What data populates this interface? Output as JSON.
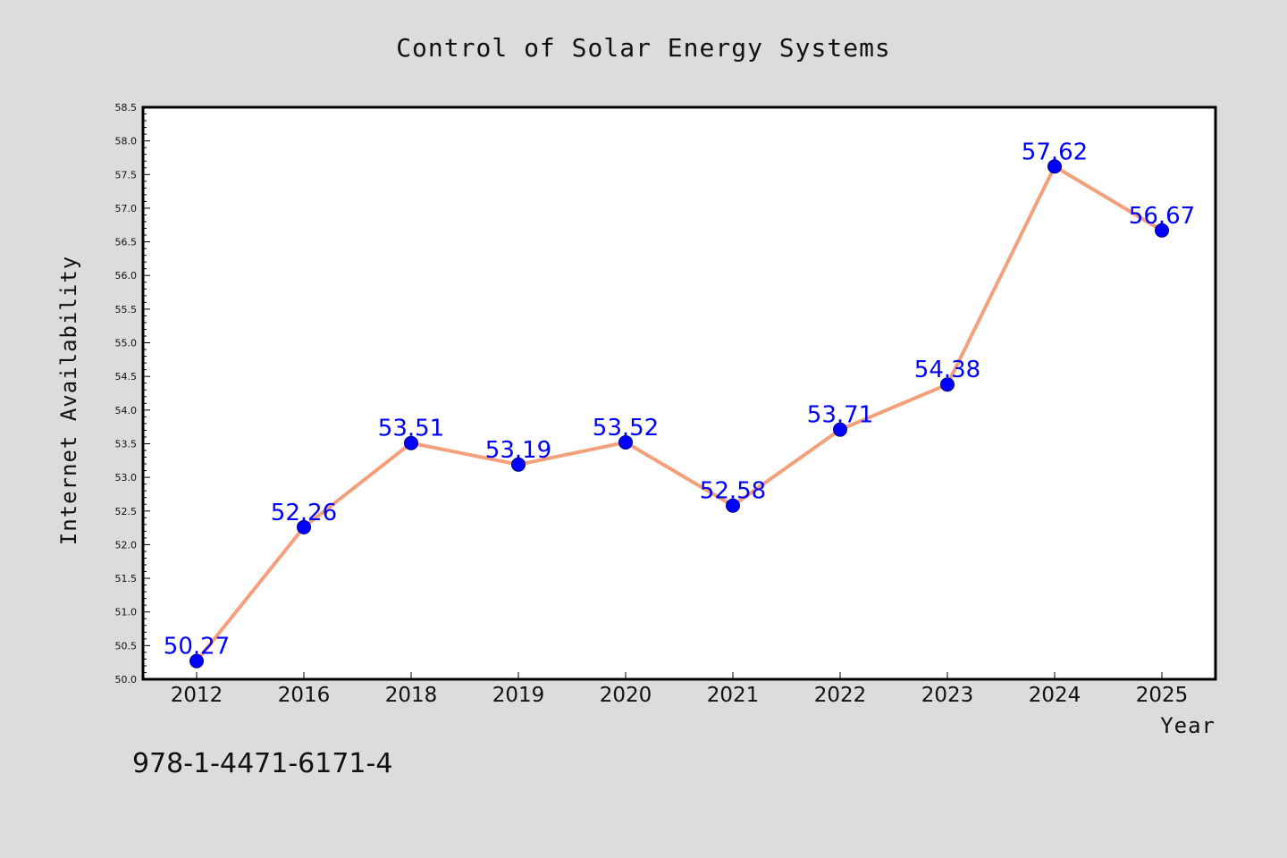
{
  "chart_data": {
    "type": "line",
    "title": "Control of Solar Energy Systems",
    "xlabel": "Year",
    "ylabel": "Internet Availability",
    "categories": [
      "2012",
      "2016",
      "2018",
      "2019",
      "2020",
      "2021",
      "2022",
      "2023",
      "2024",
      "2025"
    ],
    "series": [
      {
        "values": [
          50.27,
          52.26,
          53.51,
          53.19,
          53.52,
          52.58,
          53.71,
          54.38,
          57.62,
          56.67
        ],
        "labels": [
          "50.27",
          "52.26",
          "53.51",
          "53.19",
          "53.52",
          "52.58",
          "53.71",
          "54.38",
          "57.62",
          "56.67"
        ],
        "line_color": "#f4a07a",
        "marker_color": "#0000ff"
      }
    ],
    "ylim": [
      50.0,
      58.5
    ],
    "yticks": [
      "50.0",
      "50.5",
      "51.0",
      "51.5",
      "52.0",
      "52.5",
      "53.0",
      "53.5",
      "54.0",
      "54.5",
      "55.0",
      "55.5",
      "56.0",
      "56.5",
      "57.0",
      "57.5",
      "58.0",
      "58.5"
    ],
    "grid": false,
    "legend": "none",
    "data_label_color": "#0000ff"
  },
  "footer_code": "978-1-4471-6171-4",
  "colors": {
    "background": "#dcdcdc",
    "plot_background": "#ffffff",
    "axis": "#000000"
  }
}
